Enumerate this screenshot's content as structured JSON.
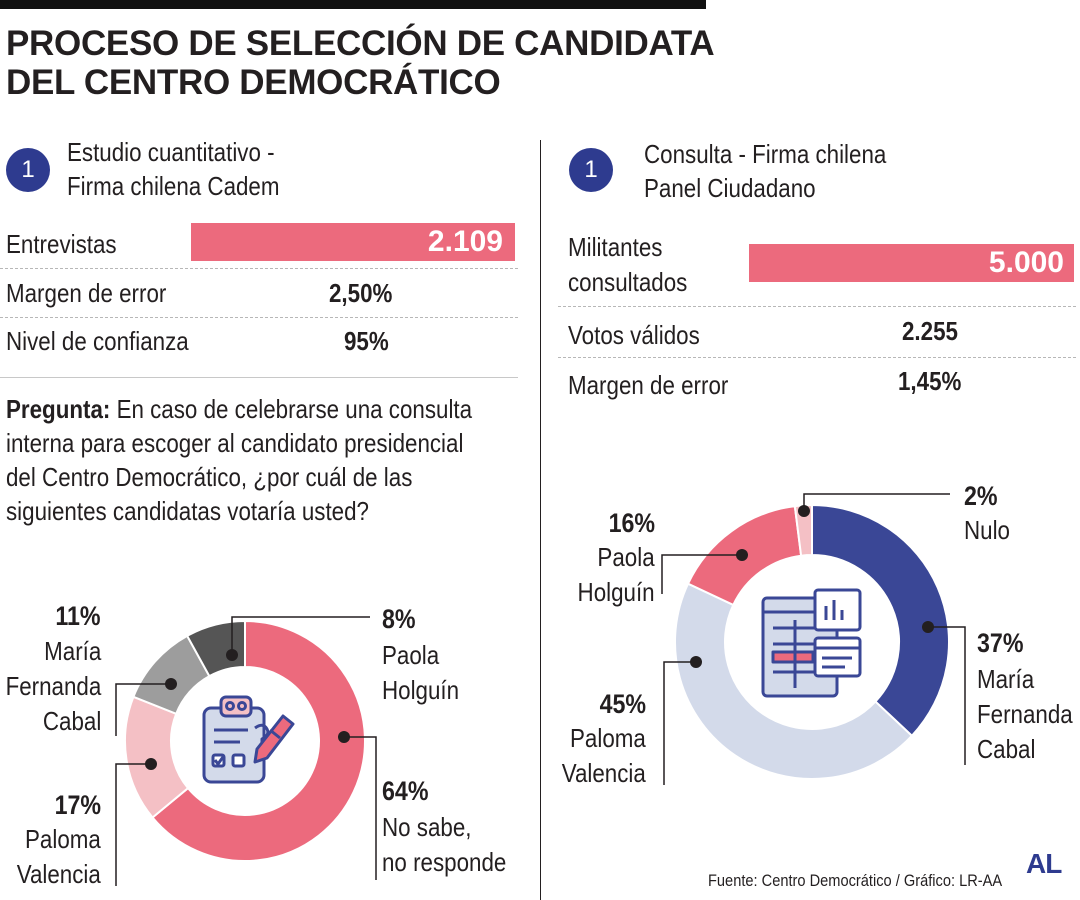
{
  "title_line1": "PROCESO DE SELECCIÓN DE CANDIDATA",
  "title_line2": "DEL CENTRO DEMOCRÁTICO",
  "left": {
    "badge": "1",
    "heading_line1": "Estudio cuantitativo -",
    "heading_line2": "Firma chilena Cadem",
    "rows": [
      {
        "label": "Entrevistas",
        "value": "2.109"
      },
      {
        "label": "Margen de error",
        "value": "2,50%"
      },
      {
        "label": "Nivel de confianza",
        "value": "95%"
      }
    ],
    "question_bold": "Pregunta:",
    "question_text": " En caso de celebrarse una consulta interna para escoger al candidato presidencial del Centro Democrático, ¿por cuál de las siguientes candidatas votaría usted?"
  },
  "right": {
    "badge": "1",
    "heading_line1": "Consulta - Firma chilena",
    "heading_line2": "Panel Ciudadano",
    "rows": [
      {
        "label_line1": "Militantes",
        "label_line2": "consultados",
        "value": "5.000"
      },
      {
        "label": "Votos válidos",
        "value": "2.255"
      },
      {
        "label": "Margen de error",
        "value": "1,45%"
      }
    ]
  },
  "colors": {
    "pink": "#ec6a7d",
    "light_pink": "#f4c0c5",
    "gray": "#9d9d9d",
    "dark_gray": "#555555",
    "navy": "#3a4796",
    "light_blue": "#d3daea",
    "badge": "#2e3b8f"
  },
  "chart_data": [
    {
      "type": "pie",
      "title": "Estudio cuantitativo - Firma chilena Cadem",
      "slices": [
        {
          "pct": "64%",
          "value": 64,
          "name_lines": [
            "No sabe,",
            "no responde"
          ],
          "color": "#ec6a7d"
        },
        {
          "pct": "17%",
          "value": 17,
          "name_lines": [
            "Paloma",
            "Valencia"
          ],
          "color": "#f4c0c5"
        },
        {
          "pct": "11%",
          "value": 11,
          "name_lines": [
            "María",
            "Fernanda",
            "Cabal"
          ],
          "color": "#9d9d9d"
        },
        {
          "pct": "8%",
          "value": 8,
          "name_lines": [
            "Paola",
            "Holguín"
          ],
          "color": "#555555"
        }
      ]
    },
    {
      "type": "pie",
      "title": "Consulta - Firma chilena Panel Ciudadano",
      "slices": [
        {
          "pct": "37%",
          "value": 37,
          "name_lines": [
            "María",
            "Fernanda",
            "Cabal"
          ],
          "color": "#3a4796"
        },
        {
          "pct": "45%",
          "value": 45,
          "name_lines": [
            "Paloma",
            "Valencia"
          ],
          "color": "#d3daea"
        },
        {
          "pct": "16%",
          "value": 16,
          "name_lines": [
            "Paola",
            "Holguín"
          ],
          "color": "#ec6a7d"
        },
        {
          "pct": "2%",
          "value": 2,
          "name_lines": [
            "Nulo"
          ],
          "color": "#f4c0c5"
        }
      ]
    }
  ],
  "source": "Fuente: Centro Democrático / Gráfico: LR-AA",
  "logo": "AL"
}
